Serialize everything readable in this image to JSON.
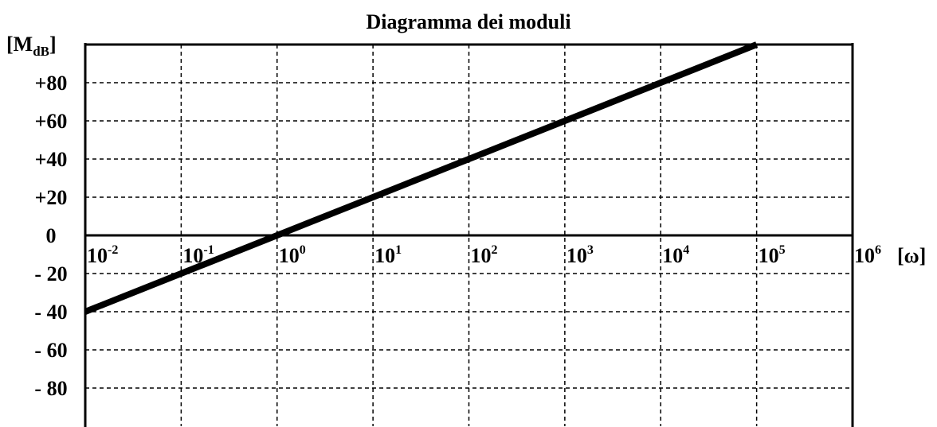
{
  "chart_data": {
    "type": "line",
    "title": "Diagramma dei moduli",
    "y_label": {
      "before": "[M",
      "subscript": "dB",
      "after": "]"
    },
    "x_label": "[ω]",
    "x_scale": "log",
    "xlim": [
      0.01,
      1000000
    ],
    "ylim": [
      -100,
      100
    ],
    "xticks": [
      {
        "value": 0.01,
        "label": "10",
        "exponent": "-2"
      },
      {
        "value": 0.1,
        "label": "10",
        "exponent": "-1"
      },
      {
        "value": 1,
        "label": "10",
        "exponent": "0"
      },
      {
        "value": 10,
        "label": "10",
        "exponent": "1"
      },
      {
        "value": 100,
        "label": "10",
        "exponent": "2"
      },
      {
        "value": 1000,
        "label": "10",
        "exponent": "3"
      },
      {
        "value": 10000,
        "label": "10",
        "exponent": "4"
      },
      {
        "value": 100000,
        "label": "10",
        "exponent": "5"
      },
      {
        "value": 1000000,
        "label": "10",
        "exponent": "6"
      }
    ],
    "yticks": [
      {
        "value": 80,
        "label": "+80"
      },
      {
        "value": 60,
        "label": "+60"
      },
      {
        "value": 40,
        "label": "+40"
      },
      {
        "value": 20,
        "label": "+20"
      },
      0,
      {
        "value": -20,
        "label": "- 20"
      },
      {
        "value": -40,
        "label": "- 40"
      },
      {
        "value": -60,
        "label": "- 60"
      },
      {
        "value": -80,
        "label": "- 80"
      }
    ],
    "grid": true,
    "series": [
      {
        "color": "#000000",
        "x": [
          0.01,
          100000
        ],
        "values": [
          -40,
          100
        ]
      }
    ]
  }
}
